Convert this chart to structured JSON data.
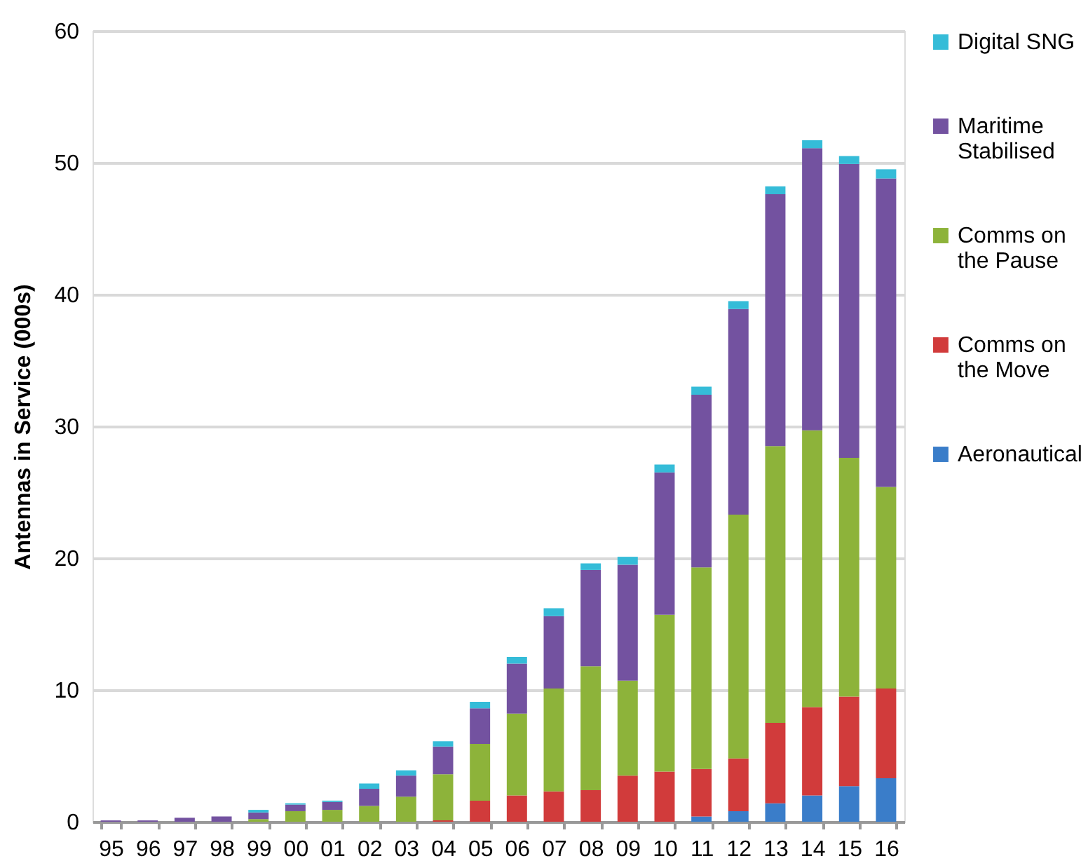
{
  "chart_data": {
    "type": "bar",
    "stacked": true,
    "ylabel": "Antennas in Service (000s)",
    "categories": [
      "95",
      "96",
      "97",
      "98",
      "99",
      "00",
      "01",
      "02",
      "03",
      "04",
      "05",
      "06",
      "07",
      "08",
      "09",
      "10",
      "11",
      "12",
      "13",
      "14",
      "15",
      "16"
    ],
    "series": [
      {
        "name": "Aeronautical",
        "color": "#3a7dc9",
        "values": [
          0,
          0,
          0,
          0,
          0,
          0,
          0,
          0,
          0,
          0,
          0,
          0,
          0,
          0,
          0,
          0,
          0.4,
          0.8,
          1.4,
          2.0,
          2.7,
          3.3
        ]
      },
      {
        "name": "Comms on the Move",
        "color": "#d13b3b",
        "values": [
          0,
          0,
          0,
          0,
          0,
          0,
          0,
          0,
          0,
          0.1,
          1.6,
          2.0,
          2.3,
          2.4,
          3.5,
          3.8,
          3.6,
          4.0,
          6.1,
          6.7,
          6.8,
          6.8
        ]
      },
      {
        "name": "Comms on the Pause",
        "color": "#8db33a",
        "values": [
          0,
          0,
          0,
          0,
          0.2,
          0.8,
          0.9,
          1.2,
          1.9,
          3.5,
          4.3,
          6.2,
          7.8,
          9.4,
          7.2,
          11.9,
          15.3,
          18.5,
          21.0,
          21.0,
          18.1,
          15.3
        ]
      },
      {
        "name": "Maritime Stabilised",
        "color": "#7352a0",
        "values": [
          0.1,
          0.1,
          0.3,
          0.4,
          0.5,
          0.5,
          0.6,
          1.3,
          1.6,
          2.1,
          2.7,
          3.8,
          5.5,
          7.3,
          8.8,
          10.8,
          13.1,
          15.6,
          19.1,
          21.4,
          22.3,
          23.4
        ]
      },
      {
        "name": "Digital SNG",
        "color": "#35bcd8",
        "values": [
          0,
          0,
          0,
          0,
          0.2,
          0.1,
          0.1,
          0.4,
          0.4,
          0.4,
          0.5,
          0.5,
          0.6,
          0.5,
          0.6,
          0.6,
          0.6,
          0.6,
          0.6,
          0.6,
          0.6,
          0.7
        ]
      }
    ],
    "ylim": [
      0,
      60
    ],
    "yticks": [
      0,
      10,
      20,
      30,
      40,
      50,
      60
    ],
    "grid": "y",
    "legend": "right"
  }
}
